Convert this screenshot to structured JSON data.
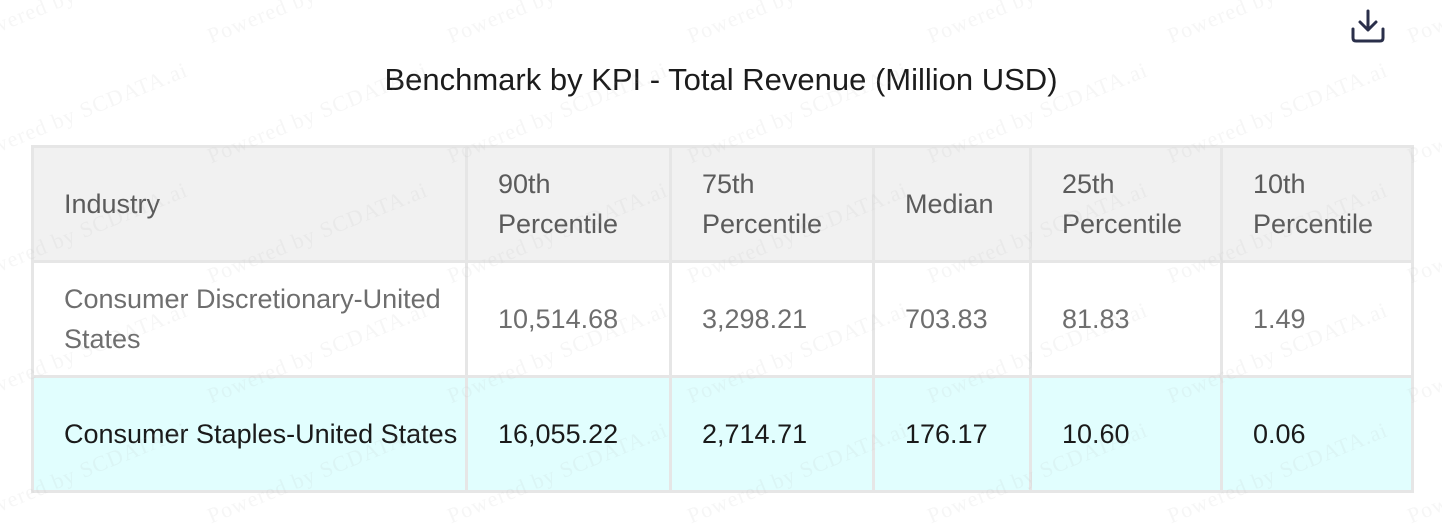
{
  "toolbar": {
    "download_icon": "download-icon"
  },
  "watermark": "Powered by SCDATA.ai",
  "chart_data": {
    "type": "table",
    "title": "Benchmark by KPI - Total Revenue (Million USD)",
    "columns": [
      "Industry",
      "90th Percentile",
      "75th Percentile",
      "Median",
      "25th Percentile",
      "10th Percentile"
    ],
    "rows": [
      {
        "industry": "Consumer Discretionary-United States",
        "values": [
          "10,514.68",
          "3,298.21",
          "703.83",
          "81.83",
          "1.49"
        ]
      },
      {
        "industry": "Consumer Staples-United States",
        "values": [
          "16,055.22",
          "2,714.71",
          "176.17",
          "10.60",
          "0.06"
        ]
      }
    ],
    "colors": {
      "header_bg": "#f1f1f1",
      "highlight_row_bg": "#e1fefe",
      "border": "#e6e6e6"
    }
  }
}
